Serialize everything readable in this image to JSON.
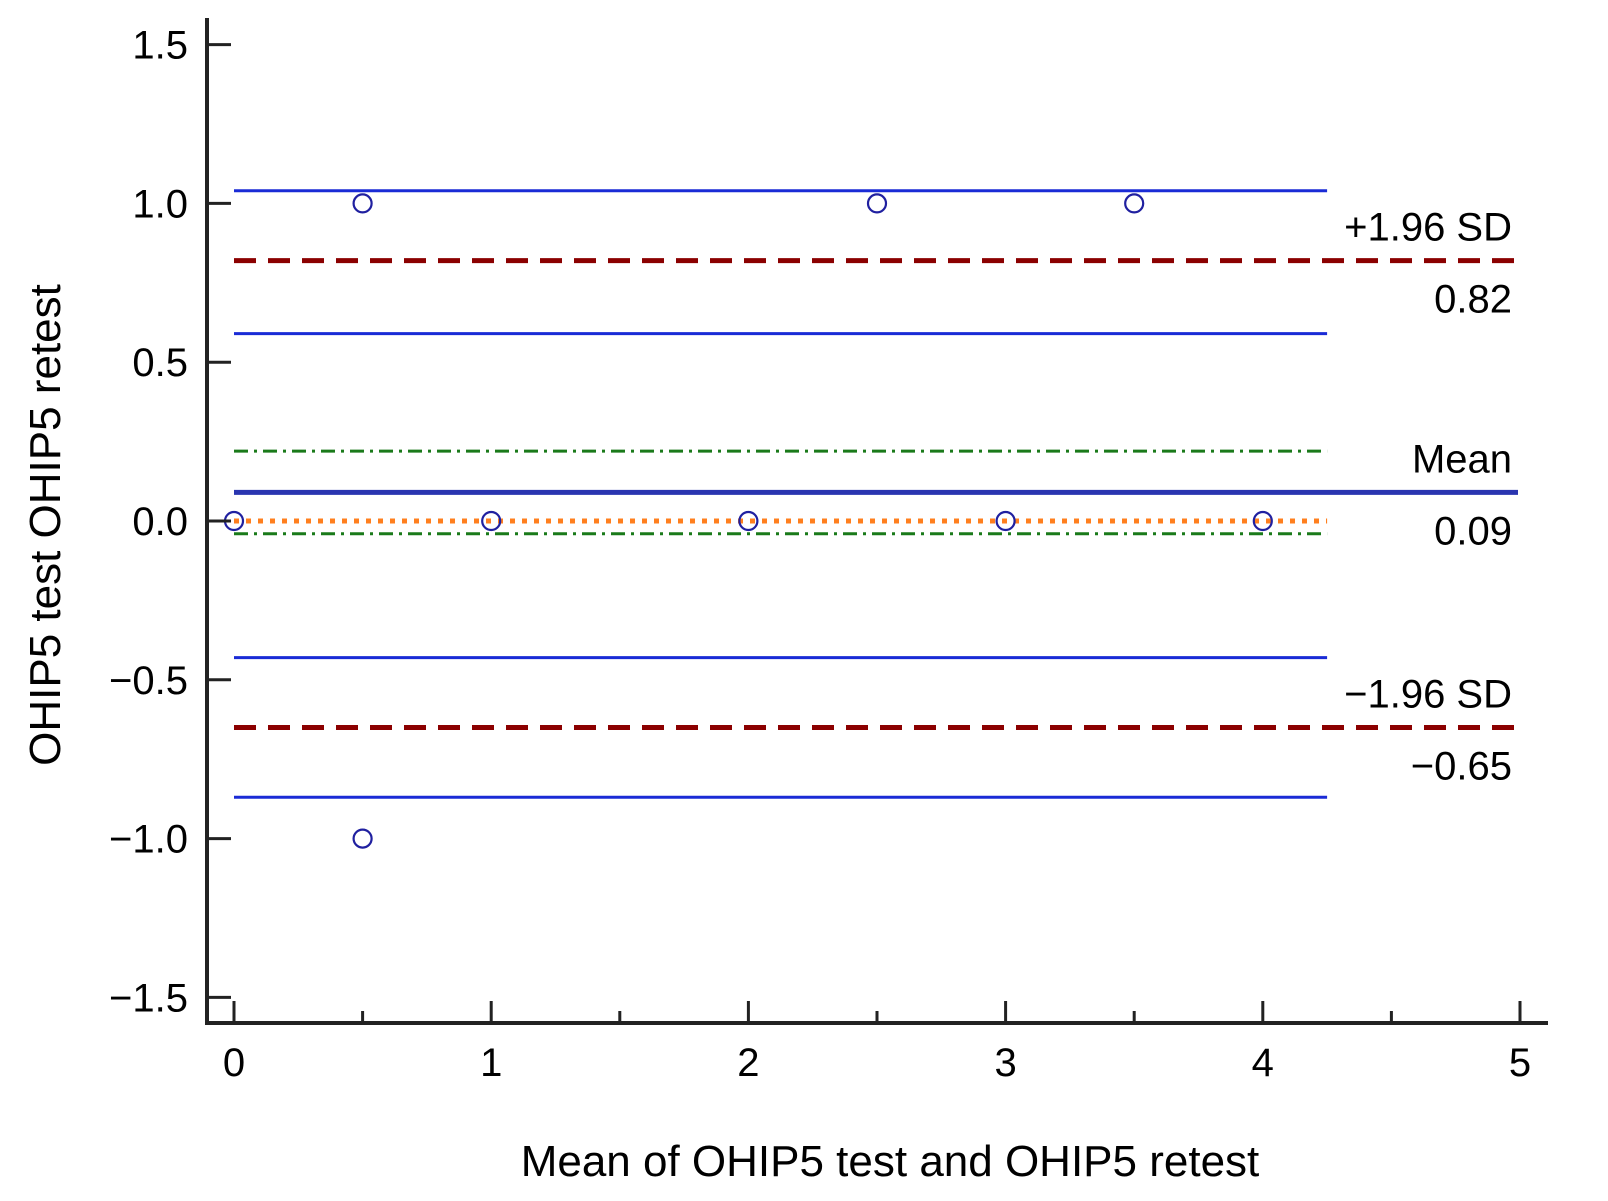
{
  "chart_data": {
    "type": "scatter",
    "title": "",
    "xlabel": "Mean of OHIP5  test  and OHIP5 retest",
    "ylabel": "OHIP5  test OHIP5 retest",
    "xlim": [
      -0.1,
      5.1
    ],
    "ylim": [
      -1.6,
      1.6
    ],
    "x_ticks": [
      0,
      1,
      2,
      3,
      4,
      5
    ],
    "x_minor_ticks": [
      0.5,
      1.5,
      2.5,
      3.5,
      4.5
    ],
    "y_ticks": [
      -1.5,
      -1.0,
      -0.5,
      0.0,
      0.5,
      1.0,
      1.5
    ],
    "y_tick_labels": [
      "−1.5",
      "−1.0",
      "−0.5",
      "0.0",
      "0.5",
      "1.0",
      "1.5"
    ],
    "x_tick_labels": [
      "0",
      "1",
      "2",
      "3",
      "4",
      "5"
    ],
    "points": [
      {
        "x": 0,
        "y": 0
      },
      {
        "x": 0.5,
        "y": 1
      },
      {
        "x": 0.5,
        "y": -1
      },
      {
        "x": 1,
        "y": 0
      },
      {
        "x": 2,
        "y": 0
      },
      {
        "x": 2.5,
        "y": 1
      },
      {
        "x": 3,
        "y": 0
      },
      {
        "x": 3.5,
        "y": 1
      },
      {
        "x": 4,
        "y": 0
      }
    ],
    "reference_lines": [
      {
        "y": 1.04,
        "x_range": [
          0,
          4.25
        ],
        "style": "solid",
        "color": "#1a2bd6",
        "width": 3
      },
      {
        "y": 0.82,
        "x_range": [
          0,
          5.1
        ],
        "style": "dashed",
        "color": "#8b0000",
        "width": 5
      },
      {
        "y": 0.59,
        "x_range": [
          0,
          4.25
        ],
        "style": "solid",
        "color": "#1a2bd6",
        "width": 3
      },
      {
        "y": 0.22,
        "x_range": [
          0,
          4.25
        ],
        "style": "dashdot",
        "color": "#1a7a1a",
        "width": 3
      },
      {
        "y": 0.09,
        "x_range": [
          0,
          5.1
        ],
        "style": "solid",
        "color": "#2a35b0",
        "width": 5
      },
      {
        "y": 0.0,
        "x_range": [
          0,
          4.25
        ],
        "style": "dotted",
        "color": "#ff7f1e",
        "width": 5
      },
      {
        "y": -0.04,
        "x_range": [
          0,
          4.25
        ],
        "style": "dashdot",
        "color": "#1a7a1a",
        "width": 3
      },
      {
        "y": -0.43,
        "x_range": [
          0,
          4.25
        ],
        "style": "solid",
        "color": "#1a2bd6",
        "width": 3
      },
      {
        "y": -0.65,
        "x_range": [
          0,
          5.1
        ],
        "style": "dashed",
        "color": "#8b0000",
        "width": 5
      },
      {
        "y": -0.87,
        "x_range": [
          0,
          4.25
        ],
        "style": "solid",
        "color": "#1a2bd6",
        "width": 3
      }
    ],
    "annotations": [
      {
        "text": "+1.96 SD",
        "y": 0.82,
        "position": "above"
      },
      {
        "text": "0.82",
        "y": 0.82,
        "position": "below"
      },
      {
        "text": "Mean",
        "y": 0.09,
        "position": "above"
      },
      {
        "text": "0.09",
        "y": 0.09,
        "position": "below"
      },
      {
        "text": "−1.96 SD",
        "y": -0.65,
        "position": "above"
      },
      {
        "text": "−0.65",
        "y": -0.65,
        "position": "below"
      }
    ],
    "marker": "open-circle",
    "marker_color": "#2020a0",
    "grid": false
  }
}
